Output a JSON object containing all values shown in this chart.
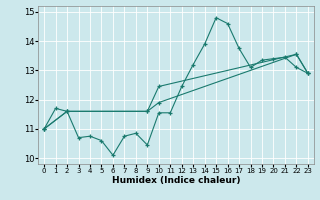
{
  "xlabel": "Humidex (Indice chaleur)",
  "bg_color": "#cce8ec",
  "line_color": "#1a7a6e",
  "grid_color": "#ffffff",
  "xlim": [
    -0.5,
    23.5
  ],
  "ylim": [
    9.8,
    15.2
  ],
  "xticks": [
    0,
    1,
    2,
    3,
    4,
    5,
    6,
    7,
    8,
    9,
    10,
    11,
    12,
    13,
    14,
    15,
    16,
    17,
    18,
    19,
    20,
    21,
    22,
    23
  ],
  "yticks": [
    10,
    11,
    12,
    13,
    14,
    15
  ],
  "line1_x": [
    0,
    1,
    2,
    3,
    4,
    5,
    6,
    7,
    8,
    9,
    10,
    11,
    12,
    13,
    14,
    15,
    16,
    17,
    18,
    19,
    20,
    21,
    22,
    23
  ],
  "line1_y": [
    11.0,
    11.7,
    11.6,
    10.7,
    10.75,
    10.6,
    10.1,
    10.75,
    10.85,
    10.45,
    11.55,
    11.55,
    12.45,
    13.2,
    13.9,
    14.8,
    14.6,
    13.75,
    13.1,
    13.35,
    13.4,
    13.45,
    13.1,
    12.9
  ],
  "line2_x": [
    0,
    2,
    9,
    10,
    22,
    23
  ],
  "line2_y": [
    11.0,
    11.6,
    11.6,
    11.9,
    13.55,
    12.9
  ],
  "line3_x": [
    0,
    2,
    9,
    10,
    22,
    23
  ],
  "line3_y": [
    11.0,
    11.6,
    11.6,
    12.45,
    13.55,
    12.9
  ]
}
